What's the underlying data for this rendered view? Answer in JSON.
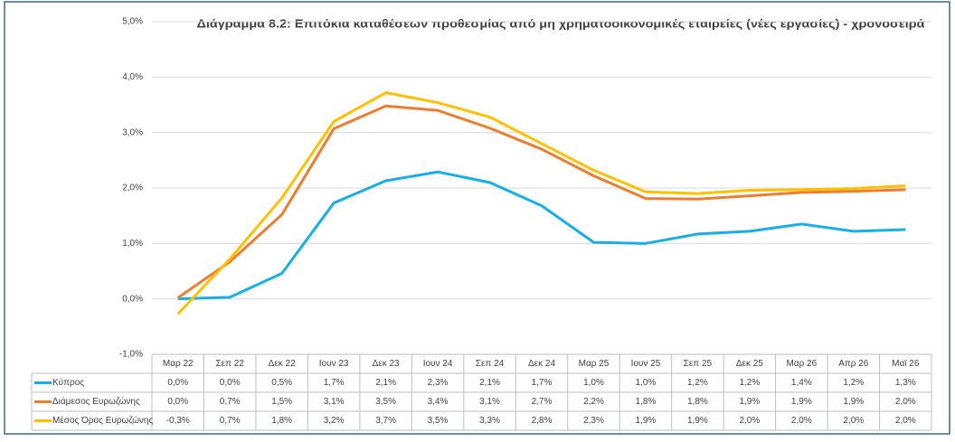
{
  "chart_data": {
    "type": "line",
    "title": "Διάγραμμα 8.2: Επιτόκια καταθέσεων προθεσμίας από μη χρηματοοικονομικές εταιρείες (νέες εργασίες) - χρονοσειρά",
    "categories": [
      "Μαρ 22",
      "Σεπ 22",
      "Δεκ 22",
      "Ιουν 23",
      "Δεκ 23",
      "Ιουν 24",
      "Σεπ 24",
      "Δεκ 24",
      "Μαρ 25",
      "Ιουν 25",
      "Σεπ 25",
      "Δεκ 25",
      "Μαρ 26",
      "Απρ 26",
      "Μαϊ 26"
    ],
    "series": [
      {
        "name": "Κύπρος",
        "color": "#1aaee8",
        "values": [
          0.0,
          0.03,
          0.46,
          1.73,
          2.13,
          2.29,
          2.1,
          1.68,
          1.02,
          1.0,
          1.17,
          1.22,
          1.35,
          1.22,
          1.25
        ],
        "value_labels": [
          "0,0%",
          "0,0%",
          "0,5%",
          "1,7%",
          "2,1%",
          "2,3%",
          "2,1%",
          "1,7%",
          "1,0%",
          "1,0%",
          "1,2%",
          "1,2%",
          "1,4%",
          "1,2%",
          "1,3%"
        ]
      },
      {
        "name": "Διάμεσος Ευρωζώνης",
        "color": "#ed7d31",
        "values": [
          0.02,
          0.67,
          1.52,
          3.07,
          3.48,
          3.4,
          3.08,
          2.7,
          2.22,
          1.81,
          1.8,
          1.86,
          1.92,
          1.94,
          1.97
        ],
        "value_labels": [
          "0,0%",
          "0,7%",
          "1,5%",
          "3,1%",
          "3,5%",
          "3,4%",
          "3,1%",
          "2,7%",
          "2,2%",
          "1,8%",
          "1,8%",
          "1,9%",
          "1,9%",
          "1,9%",
          "2,0%"
        ]
      },
      {
        "name": "Μέσος Όρος Ευρωζώνης",
        "color": "#ffc000",
        "values": [
          -0.27,
          0.72,
          1.82,
          3.2,
          3.72,
          3.54,
          3.28,
          2.8,
          2.32,
          1.93,
          1.9,
          1.96,
          1.97,
          1.99,
          2.04
        ],
        "value_labels": [
          "-0,3%",
          "0,7%",
          "1,8%",
          "3,2%",
          "3,7%",
          "3,5%",
          "3,3%",
          "2,8%",
          "2,3%",
          "1,9%",
          "1,9%",
          "2,0%",
          "2,0%",
          "2,0%",
          "2,0%"
        ]
      }
    ],
    "ylim": [
      -1,
      5
    ],
    "yticks": [
      {
        "value": -1,
        "label": "-1,0%"
      },
      {
        "value": 0,
        "label": "0,0%"
      },
      {
        "value": 1,
        "label": "1,0%"
      },
      {
        "value": 2,
        "label": "2,0%"
      },
      {
        "value": 3,
        "label": "3,0%"
      },
      {
        "value": 4,
        "label": "4,0%"
      },
      {
        "value": 5,
        "label": "5,0%"
      }
    ],
    "grid": true
  }
}
